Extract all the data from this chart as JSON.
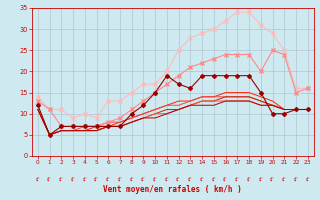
{
  "xlabel": "Vent moyen/en rafales ( km/h )",
  "x": [
    0,
    1,
    2,
    3,
    4,
    5,
    6,
    7,
    8,
    9,
    10,
    11,
    12,
    13,
    14,
    15,
    16,
    17,
    18,
    19,
    20,
    21,
    22,
    23
  ],
  "series": [
    {
      "name": "line1_lightest_pink",
      "color": "#ffbbbb",
      "linewidth": 0.8,
      "marker": "x",
      "markersize": 2.5,
      "y": [
        14,
        11,
        11,
        9,
        10,
        9,
        13,
        13,
        15,
        17,
        17,
        20,
        25,
        28,
        29,
        30,
        32,
        34,
        34,
        31,
        29,
        25,
        16,
        16
      ]
    },
    {
      "name": "line2_medium_pink",
      "color": "#ff8888",
      "linewidth": 0.8,
      "marker": "x",
      "markersize": 2.5,
      "y": [
        13,
        11,
        7,
        7,
        7,
        7,
        8,
        9,
        11,
        13,
        15,
        17,
        19,
        21,
        22,
        23,
        24,
        24,
        24,
        20,
        25,
        24,
        15,
        16
      ]
    },
    {
      "name": "line3_dark_red_diamond",
      "color": "#990000",
      "linewidth": 0.8,
      "marker": "D",
      "markersize": 2.0,
      "y": [
        12,
        5,
        7,
        7,
        7,
        7,
        7,
        7,
        10,
        12,
        15,
        19,
        17,
        16,
        19,
        19,
        19,
        19,
        19,
        15,
        10,
        10,
        11,
        11
      ]
    },
    {
      "name": "line4_red_solid1",
      "color": "#ff2200",
      "linewidth": 0.7,
      "marker": null,
      "markersize": 0,
      "y": [
        11,
        5,
        6,
        6,
        6,
        7,
        7,
        8,
        9,
        10,
        11,
        12,
        13,
        13,
        14,
        14,
        15,
        15,
        15,
        14,
        13,
        11,
        11,
        11
      ]
    },
    {
      "name": "line5_red_solid2",
      "color": "#ee4444",
      "linewidth": 0.7,
      "marker": null,
      "markersize": 0,
      "y": [
        11,
        5,
        6,
        6,
        7,
        7,
        8,
        8,
        9,
        10,
        11,
        12,
        12,
        13,
        14,
        14,
        14,
        14,
        14,
        13,
        12,
        11,
        11,
        11
      ]
    },
    {
      "name": "line6_red_solid3",
      "color": "#cc2200",
      "linewidth": 0.7,
      "marker": null,
      "markersize": 0,
      "y": [
        11,
        5,
        6,
        6,
        6,
        6,
        7,
        7,
        8,
        9,
        10,
        11,
        11,
        12,
        13,
        13,
        14,
        14,
        14,
        13,
        12,
        11,
        11,
        11
      ]
    },
    {
      "name": "line7_red_solid4",
      "color": "#ff5533",
      "linewidth": 0.7,
      "marker": null,
      "markersize": 0,
      "y": [
        11,
        5,
        6,
        6,
        6,
        6,
        7,
        7,
        8,
        9,
        10,
        10,
        11,
        12,
        13,
        13,
        13,
        13,
        13,
        12,
        12,
        11,
        11,
        11
      ]
    },
    {
      "name": "line8_darkred",
      "color": "#aa0000",
      "linewidth": 0.7,
      "marker": null,
      "markersize": 0,
      "y": [
        11,
        5,
        6,
        6,
        6,
        6,
        7,
        7,
        8,
        9,
        9,
        10,
        11,
        12,
        12,
        12,
        13,
        13,
        13,
        12,
        12,
        11,
        11,
        11
      ]
    }
  ],
  "ylim": [
    0,
    35
  ],
  "yticks": [
    0,
    5,
    10,
    15,
    20,
    25,
    30,
    35
  ],
  "xlim": [
    -0.5,
    23.5
  ],
  "bg_color": "#ceeaf0",
  "grid_color": "#aabbcc",
  "tick_color": "#cc0000",
  "label_color": "#cc0000",
  "figsize": [
    3.2,
    2.0
  ],
  "dpi": 100
}
